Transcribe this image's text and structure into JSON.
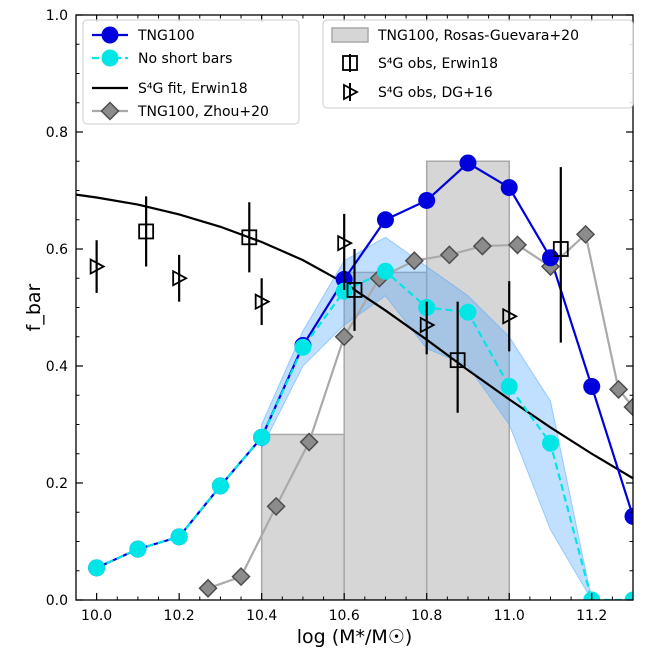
{
  "chart_data": {
    "type": "line",
    "xlabel": "log (M*/M☉)",
    "ylabel": "f_bar",
    "xlim": [
      9.95,
      11.3
    ],
    "ylim": [
      0.0,
      1.0
    ],
    "xticks": [
      10.0,
      10.2,
      10.4,
      10.6,
      10.8,
      11.0,
      11.2
    ],
    "yticks": [
      0.0,
      0.2,
      0.4,
      0.6,
      0.8,
      1.0
    ],
    "xtick_labels": [
      "10.0",
      "10.2",
      "10.4",
      "10.6",
      "10.8",
      "11.0",
      "11.2"
    ],
    "ytick_labels": [
      "0.0",
      "0.2",
      "0.4",
      "0.6",
      "0.8",
      "1.0"
    ],
    "grid": false,
    "legend": "top",
    "series": [
      {
        "name": "TNG100",
        "kind": "line-marker",
        "color": "#0000dd",
        "x": [
          10.0,
          10.1,
          10.2,
          10.3,
          10.4,
          10.5,
          10.6,
          10.7,
          10.8,
          10.9,
          11.0,
          11.1,
          11.2,
          11.3
        ],
        "y": [
          0.055,
          0.087,
          0.108,
          0.195,
          0.278,
          0.435,
          0.548,
          0.65,
          0.683,
          0.747,
          0.705,
          0.585,
          0.365,
          0.143
        ]
      },
      {
        "name": "No short bars",
        "kind": "dashed-marker",
        "color": "#00e6e6",
        "x": [
          10.0,
          10.1,
          10.2,
          10.3,
          10.4,
          10.5,
          10.6,
          10.7,
          10.8,
          10.9,
          11.0,
          11.1,
          11.2,
          11.3
        ],
        "y": [
          0.055,
          0.087,
          0.108,
          0.195,
          0.278,
          0.432,
          0.528,
          0.562,
          0.5,
          0.492,
          0.365,
          0.268,
          0.0,
          0.0
        ],
        "band_x": [
          10.4,
          10.5,
          10.6,
          10.7,
          10.8,
          10.9,
          11.0,
          11.1,
          11.2
        ],
        "band_upper": [
          0.3,
          0.46,
          0.58,
          0.62,
          0.57,
          0.52,
          0.45,
          0.34,
          0.0
        ],
        "band_lower": [
          0.26,
          0.4,
          0.47,
          0.52,
          0.43,
          0.4,
          0.3,
          0.12,
          0.0
        ]
      },
      {
        "name": "S⁴G fit, Erwin18",
        "kind": "line",
        "color": "#000000",
        "x": [
          9.95,
          10.0,
          10.1,
          10.2,
          10.3,
          10.4,
          10.5,
          10.6,
          10.7,
          10.8,
          10.9,
          11.0,
          11.1,
          11.2,
          11.3
        ],
        "y": [
          0.693,
          0.688,
          0.676,
          0.659,
          0.638,
          0.612,
          0.581,
          0.542,
          0.495,
          0.445,
          0.393,
          0.343,
          0.295,
          0.25,
          0.208
        ]
      },
      {
        "name": "TNG100, Zhou+20",
        "kind": "diamond-line",
        "color": "#999999",
        "x": [
          10.27,
          10.35,
          10.435,
          10.515,
          10.6,
          10.685,
          10.77,
          10.855,
          10.935,
          11.02,
          11.1,
          11.185,
          11.265,
          11.3
        ],
        "y": [
          0.02,
          0.04,
          0.16,
          0.27,
          0.45,
          0.55,
          0.58,
          0.59,
          0.605,
          0.607,
          0.57,
          0.625,
          0.36,
          0.33
        ]
      },
      {
        "name": "TNG100, Rosas-Guevara+20",
        "kind": "histogram",
        "color": "#c8c8c8",
        "bins": [
          [
            10.4,
            10.6,
            0.283
          ],
          [
            10.6,
            10.8,
            0.56
          ],
          [
            10.8,
            11.0,
            0.75
          ]
        ]
      },
      {
        "name": "S⁴G obs, Erwin18",
        "kind": "square-errorbar",
        "color": "#000000",
        "x": [
          10.12,
          10.37,
          10.625,
          10.875,
          11.125
        ],
        "y": [
          0.63,
          0.62,
          0.53,
          0.41,
          0.6
        ],
        "yerr_low": [
          0.06,
          0.06,
          0.07,
          0.09,
          0.16
        ],
        "yerr_high": [
          0.06,
          0.06,
          0.07,
          0.1,
          0.14
        ]
      },
      {
        "name": "S⁴G obs, DG+16",
        "kind": "triangle-errorbar",
        "color": "#000000",
        "x": [
          10.0,
          10.2,
          10.4,
          10.6,
          10.8,
          11.0
        ],
        "y": [
          0.57,
          0.55,
          0.51,
          0.61,
          0.47,
          0.485
        ],
        "yerr_low": [
          0.045,
          0.04,
          0.04,
          0.08,
          0.05,
          0.06
        ],
        "yerr_high": [
          0.045,
          0.04,
          0.04,
          0.05,
          0.04,
          0.06
        ]
      }
    ]
  }
}
